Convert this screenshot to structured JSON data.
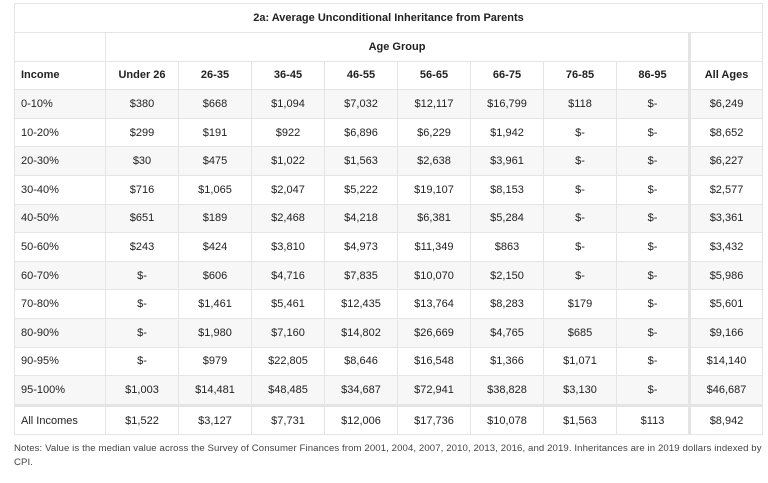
{
  "title": "2a: Average Unconditional Inheritance from Parents",
  "group_header": "Age Group",
  "row_header": "Income",
  "columns": [
    "Under 26",
    "26-35",
    "36-45",
    "46-55",
    "56-65",
    "66-75",
    "76-85",
    "86-95"
  ],
  "total_column": "All Ages",
  "rows": [
    {
      "label": "0-10%",
      "values": [
        "$380",
        "$668",
        "$1,094",
        "$7,032",
        "$12,117",
        "$16,799",
        "$118",
        "$-"
      ],
      "total": "$6,249"
    },
    {
      "label": "10-20%",
      "values": [
        "$299",
        "$191",
        "$922",
        "$6,896",
        "$6,229",
        "$1,942",
        "$-",
        "$-"
      ],
      "total": "$8,652"
    },
    {
      "label": "20-30%",
      "values": [
        "$30",
        "$475",
        "$1,022",
        "$1,563",
        "$2,638",
        "$3,961",
        "$-",
        "$-"
      ],
      "total": "$6,227"
    },
    {
      "label": "30-40%",
      "values": [
        "$716",
        "$1,065",
        "$2,047",
        "$5,222",
        "$19,107",
        "$8,153",
        "$-",
        "$-"
      ],
      "total": "$2,577"
    },
    {
      "label": "40-50%",
      "values": [
        "$651",
        "$189",
        "$2,468",
        "$4,218",
        "$6,381",
        "$5,284",
        "$-",
        "$-"
      ],
      "total": "$3,361"
    },
    {
      "label": "50-60%",
      "values": [
        "$243",
        "$424",
        "$3,810",
        "$4,973",
        "$11,349",
        "$863",
        "$-",
        "$-"
      ],
      "total": "$3,432"
    },
    {
      "label": "60-70%",
      "values": [
        "$-",
        "$606",
        "$4,716",
        "$7,835",
        "$10,070",
        "$2,150",
        "$-",
        "$-"
      ],
      "total": "$5,986"
    },
    {
      "label": "70-80%",
      "values": [
        "$-",
        "$1,461",
        "$5,461",
        "$12,435",
        "$13,764",
        "$8,283",
        "$179",
        "$-"
      ],
      "total": "$5,601"
    },
    {
      "label": "80-90%",
      "values": [
        "$-",
        "$1,980",
        "$7,160",
        "$14,802",
        "$26,669",
        "$4,765",
        "$685",
        "$-"
      ],
      "total": "$9,166"
    },
    {
      "label": "90-95%",
      "values": [
        "$-",
        "$979",
        "$22,805",
        "$8,646",
        "$16,548",
        "$1,366",
        "$1,071",
        "$-"
      ],
      "total": "$14,140"
    },
    {
      "label": "95-100%",
      "values": [
        "$1,003",
        "$14,481",
        "$48,485",
        "$34,687",
        "$72,941",
        "$38,828",
        "$3,130",
        "$-"
      ],
      "total": "$46,687"
    }
  ],
  "total_row": {
    "label": "All Incomes",
    "values": [
      "$1,522",
      "$3,127",
      "$7,731",
      "$12,006",
      "$17,736",
      "$10,078",
      "$1,563",
      "$113"
    ],
    "total": "$8,942"
  },
  "notes": "Notes: Value is the median value across the Survey of Consumer Finances from 2001, 2004, 2007, 2010, 2013, 2016, and 2019. Inheritances are in 2019 dollars indexed by CPI."
}
